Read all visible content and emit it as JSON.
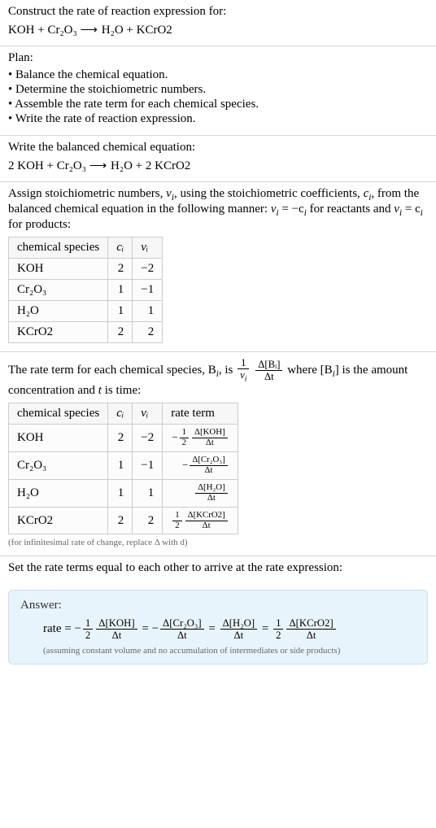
{
  "header": {
    "prompt": "Construct the rate of reaction expression for:",
    "equation_lhs": "KOH + Cr₂O₃",
    "equation_arrow": "⟶",
    "equation_rhs": "H₂O + KCrO2"
  },
  "plan": {
    "title": "Plan:",
    "items": [
      "• Balance the chemical equation.",
      "• Determine the stoichiometric numbers.",
      "• Assemble the rate term for each chemical species.",
      "• Write the rate of reaction expression."
    ]
  },
  "balanced": {
    "title": "Write the balanced chemical equation:",
    "equation_lhs": "2 KOH + Cr₂O₃",
    "equation_arrow": "⟶",
    "equation_rhs": "H₂O + 2 KCrO2"
  },
  "stoich": {
    "intro_part1": "Assign stoichiometric numbers, ",
    "intro_nu": "ν",
    "intro_sub_i": "i",
    "intro_part2": ", using the stoichiometric coefficients, ",
    "intro_c": "c",
    "intro_part3": ", from the balanced chemical equation in the following manner: ",
    "intro_eq1_lhs": "ν",
    "intro_eq1_rhs": " = −c",
    "intro_part4": " for reactants and ",
    "intro_eq2": "ν",
    "intro_eq2b": " = c",
    "intro_part5": " for products:",
    "table": {
      "headers": [
        "chemical species",
        "cᵢ",
        "νᵢ"
      ],
      "rows": [
        [
          "KOH",
          "2",
          "−2"
        ],
        [
          "Cr₂O₃",
          "1",
          "−1"
        ],
        [
          "H₂O",
          "1",
          "1"
        ],
        [
          "KCrO2",
          "2",
          "2"
        ]
      ]
    }
  },
  "rateterm": {
    "intro_a": "The rate term for each chemical species, B",
    "intro_b": ", is ",
    "frac1_num": "1",
    "frac1_den_nu": "ν",
    "frac2_num": "Δ[Bᵢ]",
    "frac2_den": "Δt",
    "intro_c": " where [B",
    "intro_d": "] is the amount concentration and ",
    "intro_t": "t",
    "intro_e": " is time:",
    "table": {
      "headers": [
        "chemical species",
        "cᵢ",
        "νᵢ",
        "rate term"
      ],
      "rows": [
        {
          "sp": "KOH",
          "c": "2",
          "nu": "−2",
          "sign": "−",
          "coef_num": "1",
          "coef_den": "2",
          "conc": "Δ[KOH]"
        },
        {
          "sp": "Cr₂O₃",
          "c": "1",
          "nu": "−1",
          "sign": "−",
          "coef_num": "",
          "coef_den": "",
          "conc": "Δ[Cr₂O₃]"
        },
        {
          "sp": "H₂O",
          "c": "1",
          "nu": "1",
          "sign": "",
          "coef_num": "",
          "coef_den": "",
          "conc": "Δ[H₂O]"
        },
        {
          "sp": "KCrO2",
          "c": "2",
          "nu": "2",
          "sign": "",
          "coef_num": "1",
          "coef_den": "2",
          "conc": "Δ[KCrO2]"
        }
      ],
      "dt": "Δt"
    },
    "note": "(for infinitesimal rate of change, replace Δ with d)"
  },
  "final": {
    "title": "Set the rate terms equal to each other to arrive at the rate expression:"
  },
  "answer": {
    "label": "Answer:",
    "rate_label": "rate = ",
    "terms": [
      {
        "sign": "−",
        "coef_num": "1",
        "coef_den": "2",
        "conc": "Δ[KOH]"
      },
      {
        "sign": "−",
        "coef_num": "",
        "coef_den": "",
        "conc": "Δ[Cr₂O₃]"
      },
      {
        "sign": "",
        "coef_num": "",
        "coef_den": "",
        "conc": "Δ[H₂O]"
      },
      {
        "sign": "",
        "coef_num": "1",
        "coef_den": "2",
        "conc": "Δ[KCrO2]"
      }
    ],
    "dt": "Δt",
    "eq": " = ",
    "note": "(assuming constant volume and no accumulation of intermediates or side products)"
  }
}
